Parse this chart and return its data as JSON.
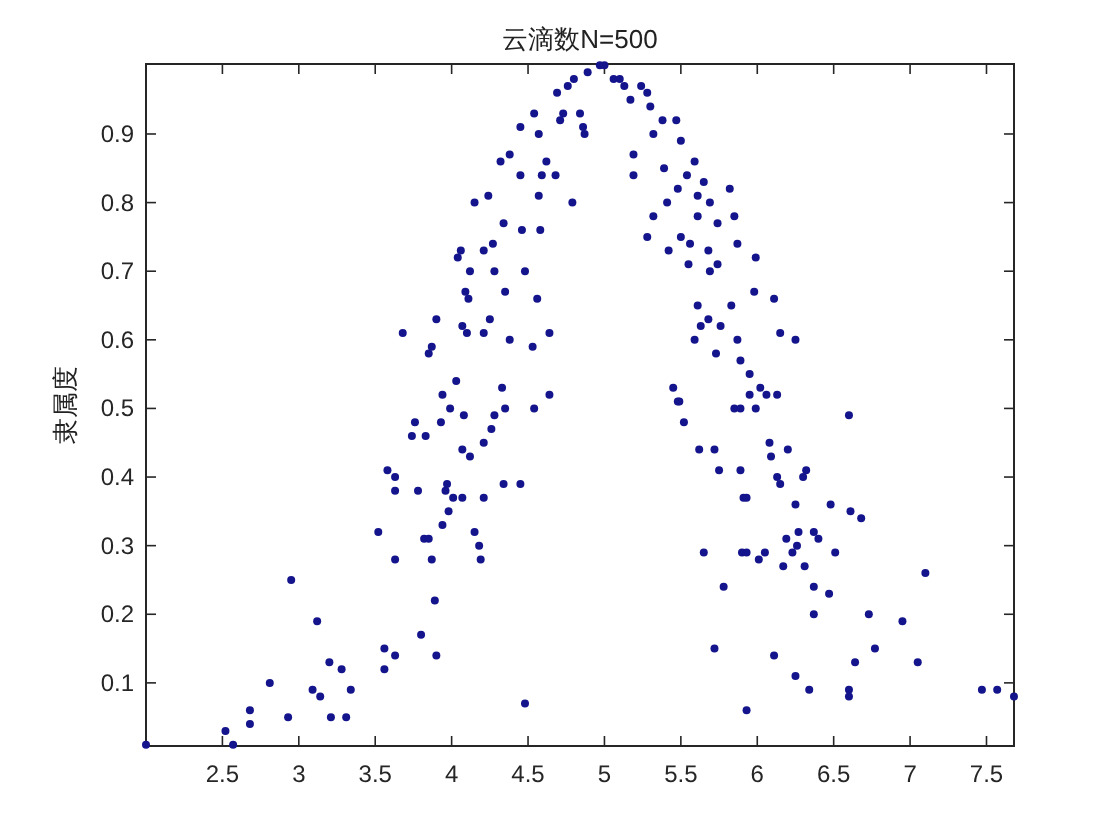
{
  "chart_data": {
    "type": "scatter",
    "title": "云滴数N=500",
    "ylabel": "隶属度",
    "color": "#14148c",
    "marker": "circle",
    "xlim": [
      2.0,
      7.68
    ],
    "ylim": [
      0.008,
      1.002
    ],
    "xticks": [
      2.5,
      3,
      3.5,
      4,
      4.5,
      5,
      5.5,
      6,
      6.5,
      7,
      7.5
    ],
    "yticks": [
      0.1,
      0.2,
      0.3,
      0.4,
      0.5,
      0.6,
      0.7,
      0.8,
      0.9
    ],
    "x": [
      2.0,
      2.52,
      2.57,
      2.68,
      2.68,
      2.81,
      2.95,
      2.93,
      3.12,
      3.09,
      3.14,
      3.2,
      3.21,
      3.28,
      3.31,
      3.34,
      3.52,
      3.56,
      3.56,
      3.63,
      3.58,
      3.63,
      3.63,
      3.63,
      3.74,
      3.76,
      3.78,
      3.83,
      3.8,
      3.82,
      3.85,
      3.87,
      3.89,
      3.9,
      3.93,
      3.94,
      3.96,
      3.94,
      3.97,
      3.98,
      3.99,
      4.01,
      4.03,
      4.07,
      4.07,
      4.08,
      4.12,
      4.15,
      4.18,
      4.19,
      4.21,
      4.21,
      4.26,
      4.28,
      4.34,
      4.35,
      4.33,
      4.45,
      4.48,
      4.54,
      4.64,
      3.68,
      3.9,
      3.87,
      3.85,
      4.06,
      4.04,
      4.12,
      4.09,
      4.11,
      4.07,
      4.1,
      4.15,
      4.24,
      4.21,
      4.27,
      4.28,
      4.21,
      4.25,
      4.34,
      4.35,
      4.38,
      4.32,
      4.38,
      4.45,
      4.45,
      4.48,
      4.46,
      4.53,
      4.56,
      4.54,
      4.57,
      4.57,
      4.58,
      4.64,
      4.59,
      4.62,
      4.69,
      4.71,
      4.68,
      4.79,
      4.8,
      4.86,
      4.89,
      5.0,
      5.06,
      4.73,
      4.84,
      4.87,
      5.1,
      5.17,
      5.28,
      5.3,
      5.19,
      5.19,
      5.32,
      5.38,
      5.39,
      5.47,
      5.5,
      5.32,
      5.28,
      5.42,
      5.41,
      5.48,
      5.54,
      5.59,
      5.61,
      5.61,
      5.5,
      5.56,
      5.55,
      5.65,
      5.69,
      5.74,
      5.68,
      5.74,
      5.69,
      5.82,
      5.85,
      5.87,
      5.99,
      5.61,
      5.63,
      5.68,
      5.76,
      5.59,
      5.83,
      5.73,
      5.87,
      5.89,
      5.98,
      6.11,
      6.15,
      6.25,
      5.95,
      6.02,
      6.06,
      6.13,
      5.45,
      5.49,
      6.6,
      5.48,
      5.52,
      5.62,
      5.72,
      5.75,
      5.85,
      5.89,
      5.99,
      5.95,
      5.89,
      5.91,
      5.93,
      6.08,
      6.09,
      6.2,
      6.13,
      6.15,
      6.32,
      6.3,
      6.25,
      6.48,
      6.61,
      6.68,
      6.19,
      6.27,
      6.37,
      6.4,
      6.26,
      6.23,
      6.51,
      5.65,
      5.9,
      5.93,
      6.01,
      6.05,
      6.17,
      6.31,
      7.1,
      5.78,
      6.37,
      6.47,
      6.37,
      6.73,
      6.95,
      5.72,
      6.11,
      6.77,
      6.64,
      7.05,
      6.25,
      6.34,
      6.6,
      6.6,
      7.47,
      7.57,
      7.68,
      5.93,
      4.76,
      4.97,
      5.13,
      5.24
    ],
    "values": [
      0.01,
      0.03,
      0.01,
      0.06,
      0.04,
      0.1,
      0.25,
      0.05,
      0.19,
      0.09,
      0.08,
      0.13,
      0.05,
      0.12,
      0.05,
      0.09,
      0.32,
      0.15,
      0.12,
      0.14,
      0.41,
      0.4,
      0.38,
      0.28,
      0.46,
      0.48,
      0.38,
      0.46,
      0.17,
      0.31,
      0.31,
      0.28,
      0.22,
      0.14,
      0.48,
      0.52,
      0.38,
      0.33,
      0.39,
      0.35,
      0.5,
      0.37,
      0.54,
      0.37,
      0.44,
      0.49,
      0.43,
      0.32,
      0.3,
      0.28,
      0.45,
      0.37,
      0.47,
      0.49,
      0.39,
      0.5,
      0.53,
      0.39,
      0.07,
      0.5,
      0.52,
      0.61,
      0.63,
      0.59,
      0.58,
      0.73,
      0.72,
      0.7,
      0.67,
      0.66,
      0.62,
      0.61,
      0.8,
      0.81,
      0.73,
      0.74,
      0.7,
      0.61,
      0.63,
      0.77,
      0.67,
      0.6,
      0.86,
      0.87,
      0.84,
      0.91,
      0.7,
      0.76,
      0.59,
      0.66,
      0.93,
      0.9,
      0.81,
      0.76,
      0.61,
      0.84,
      0.86,
      0.96,
      0.92,
      0.84,
      0.8,
      0.98,
      0.91,
      0.99,
      1.0,
      0.98,
      0.93,
      0.93,
      0.9,
      0.98,
      0.95,
      0.96,
      0.94,
      0.87,
      0.84,
      0.9,
      0.92,
      0.85,
      0.92,
      0.89,
      0.78,
      0.75,
      0.73,
      0.8,
      0.82,
      0.84,
      0.86,
      0.81,
      0.78,
      0.75,
      0.74,
      0.71,
      0.83,
      0.8,
      0.77,
      0.73,
      0.71,
      0.7,
      0.82,
      0.78,
      0.74,
      0.72,
      0.65,
      0.62,
      0.63,
      0.62,
      0.6,
      0.65,
      0.58,
      0.6,
      0.57,
      0.67,
      0.66,
      0.61,
      0.6,
      0.55,
      0.53,
      0.52,
      0.52,
      0.53,
      0.51,
      0.49,
      0.51,
      0.48,
      0.44,
      0.44,
      0.41,
      0.5,
      0.5,
      0.5,
      0.52,
      0.41,
      0.37,
      0.37,
      0.45,
      0.43,
      0.44,
      0.4,
      0.39,
      0.41,
      0.4,
      0.36,
      0.36,
      0.35,
      0.34,
      0.31,
      0.32,
      0.32,
      0.31,
      0.3,
      0.29,
      0.29,
      0.29,
      0.29,
      0.29,
      0.28,
      0.29,
      0.27,
      0.27,
      0.26,
      0.24,
      0.24,
      0.23,
      0.2,
      0.2,
      0.19,
      0.15,
      0.14,
      0.15,
      0.13,
      0.13,
      0.11,
      0.09,
      0.09,
      0.08,
      0.09,
      0.09,
      0.08,
      0.06,
      0.97,
      1.0,
      0.97,
      0.97
    ]
  }
}
